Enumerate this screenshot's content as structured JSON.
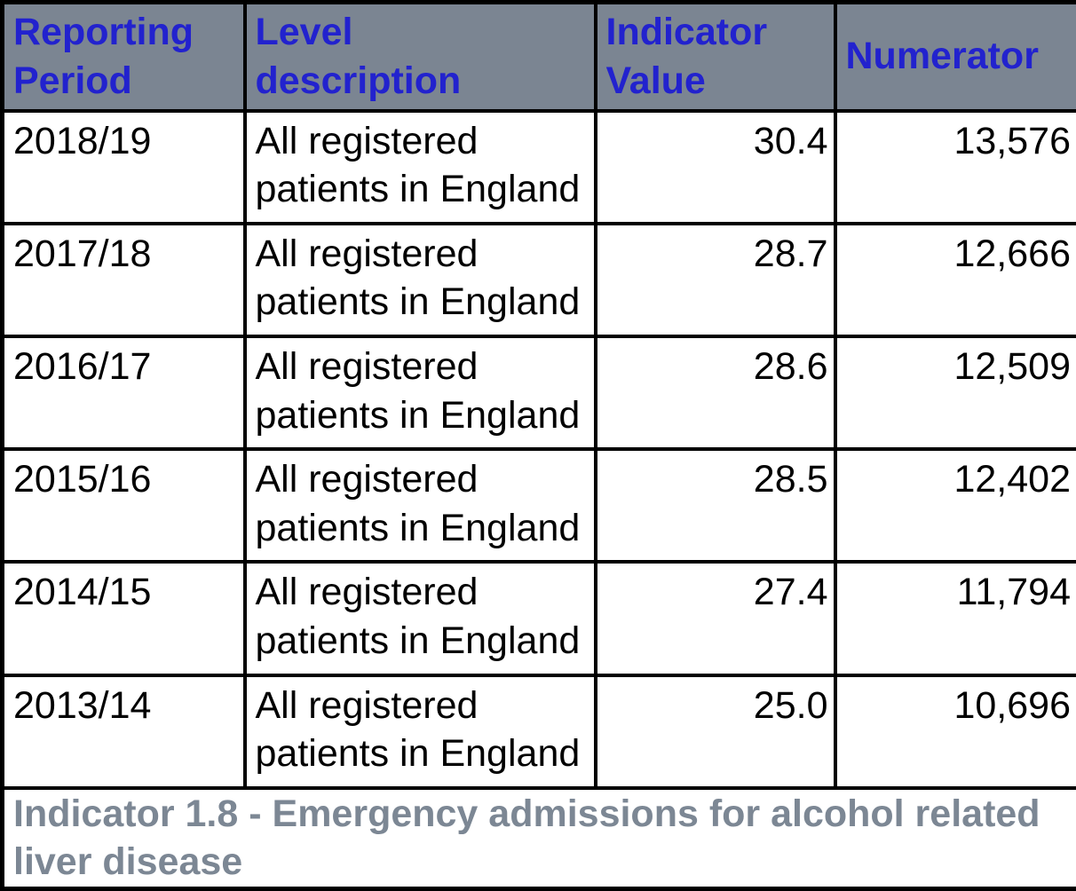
{
  "colors": {
    "header_background": "#7B8592",
    "header_text": "#2222CE",
    "border": "#000000",
    "body_text": "#000000",
    "caption_text": "#7C8794"
  },
  "table": {
    "headers": [
      "Reporting Period",
      "Level description",
      "Indicator Value",
      "Numerator"
    ],
    "rows": [
      {
        "period": "2018/19",
        "level": "All registered patients in England",
        "value": "30.4",
        "numerator": "13,576"
      },
      {
        "period": "2017/18",
        "level": "All registered patients in England",
        "value": "28.7",
        "numerator": "12,666"
      },
      {
        "period": "2016/17",
        "level": "All registered patients in England",
        "value": "28.6",
        "numerator": "12,509"
      },
      {
        "period": "2015/16",
        "level": "All registered patients in England",
        "value": "28.5",
        "numerator": "12,402"
      },
      {
        "period": "2014/15",
        "level": "All registered patients in England",
        "value": "27.4",
        "numerator": "11,794"
      },
      {
        "period": "2013/14",
        "level": "All registered patients in England",
        "value": "25.0",
        "numerator": "10,696"
      }
    ],
    "footer": "Indicator 1.8 - Emergency admissions for alcohol related liver disease"
  }
}
